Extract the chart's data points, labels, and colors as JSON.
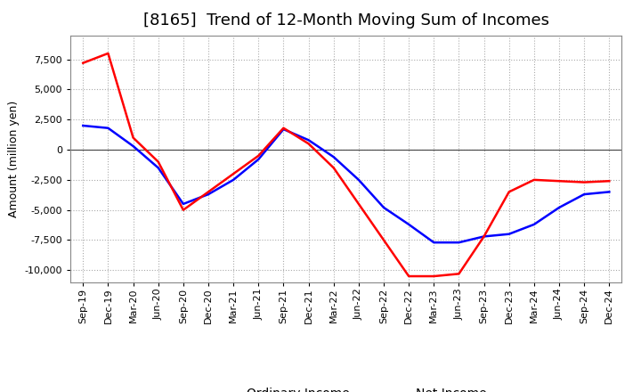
{
  "title": "[8165]  Trend of 12-Month Moving Sum of Incomes",
  "ylabel": "Amount (million yen)",
  "background_color": "#ffffff",
  "grid_color": "#aaaaaa",
  "x_labels": [
    "Sep-19",
    "Dec-19",
    "Mar-20",
    "Jun-20",
    "Sep-20",
    "Dec-20",
    "Mar-21",
    "Jun-21",
    "Sep-21",
    "Dec-21",
    "Mar-22",
    "Jun-22",
    "Sep-22",
    "Dec-22",
    "Mar-23",
    "Jun-23",
    "Sep-23",
    "Dec-23",
    "Mar-24",
    "Jun-24",
    "Sep-24",
    "Dec-24"
  ],
  "ordinary_income": [
    2000,
    1800,
    300,
    -1500,
    -4500,
    -3700,
    -2500,
    -800,
    1700,
    800,
    -600,
    -2500,
    -4800,
    -6200,
    -7700,
    -7700,
    -7200,
    -7000,
    -6200,
    -4800,
    -3700,
    -3500
  ],
  "net_income": [
    7200,
    8000,
    1000,
    -1000,
    -5000,
    -3500,
    -2000,
    -500,
    1800,
    500,
    -1500,
    -4500,
    -7500,
    -10500,
    -10500,
    -10300,
    -7200,
    -3500,
    -2500,
    -2600,
    -2700,
    -2600
  ],
  "ordinary_color": "#0000ff",
  "net_color": "#ff0000",
  "ylim": [
    -11000,
    9500
  ],
  "yticks": [
    -10000,
    -7500,
    -5000,
    -2500,
    0,
    2500,
    5000,
    7500
  ],
  "line_width": 1.8,
  "title_fontsize": 13,
  "legend_fontsize": 10,
  "tick_fontsize": 8,
  "ylabel_fontsize": 9
}
